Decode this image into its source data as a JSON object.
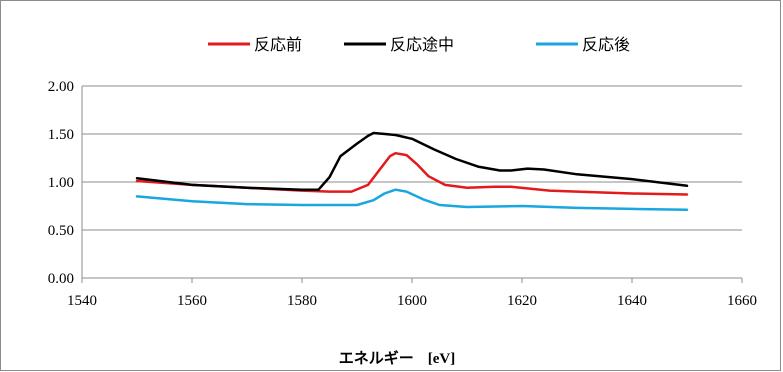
{
  "chart_data": {
    "type": "line",
    "title": "",
    "xlabel": "エネルギー",
    "xlabel_unit": "[eV]",
    "ylabel": "",
    "xlim": [
      1540,
      1660
    ],
    "ylim": [
      0,
      2
    ],
    "x_ticks": [
      "1540",
      "1560",
      "1580",
      "1600",
      "1620",
      "1640",
      "1660"
    ],
    "y_ticks": [
      "0.00",
      "0.50",
      "1.00",
      "1.50",
      "2.00"
    ],
    "grid": "horizontal",
    "legend_position": "top",
    "series": [
      {
        "name": "反応前",
        "color": "#e31a1c",
        "points": [
          [
            1550,
            1.01
          ],
          [
            1560,
            0.97
          ],
          [
            1570,
            0.94
          ],
          [
            1580,
            0.91
          ],
          [
            1585,
            0.9
          ],
          [
            1589,
            0.9
          ],
          [
            1592,
            0.97
          ],
          [
            1594,
            1.12
          ],
          [
            1596,
            1.27
          ],
          [
            1597,
            1.3
          ],
          [
            1599,
            1.28
          ],
          [
            1601,
            1.18
          ],
          [
            1603,
            1.06
          ],
          [
            1606,
            0.97
          ],
          [
            1610,
            0.94
          ],
          [
            1615,
            0.95
          ],
          [
            1618,
            0.95
          ],
          [
            1625,
            0.91
          ],
          [
            1630,
            0.9
          ],
          [
            1640,
            0.88
          ],
          [
            1650,
            0.87
          ]
        ]
      },
      {
        "name": "反応途中",
        "color": "#000000",
        "points": [
          [
            1550,
            1.04
          ],
          [
            1560,
            0.97
          ],
          [
            1570,
            0.94
          ],
          [
            1580,
            0.92
          ],
          [
            1583,
            0.92
          ],
          [
            1585,
            1.05
          ],
          [
            1587,
            1.27
          ],
          [
            1590,
            1.4
          ],
          [
            1592,
            1.48
          ],
          [
            1593,
            1.51
          ],
          [
            1597,
            1.49
          ],
          [
            1600,
            1.45
          ],
          [
            1604,
            1.34
          ],
          [
            1608,
            1.24
          ],
          [
            1612,
            1.16
          ],
          [
            1616,
            1.12
          ],
          [
            1618,
            1.12
          ],
          [
            1621,
            1.14
          ],
          [
            1624,
            1.13
          ],
          [
            1630,
            1.08
          ],
          [
            1640,
            1.03
          ],
          [
            1650,
            0.96
          ]
        ]
      },
      {
        "name": "反応後",
        "color": "#1aa6df",
        "points": [
          [
            1550,
            0.85
          ],
          [
            1560,
            0.8
          ],
          [
            1570,
            0.77
          ],
          [
            1580,
            0.76
          ],
          [
            1590,
            0.76
          ],
          [
            1593,
            0.81
          ],
          [
            1595,
            0.88
          ],
          [
            1597,
            0.92
          ],
          [
            1599,
            0.9
          ],
          [
            1602,
            0.82
          ],
          [
            1605,
            0.76
          ],
          [
            1610,
            0.74
          ],
          [
            1620,
            0.75
          ],
          [
            1630,
            0.73
          ],
          [
            1640,
            0.72
          ],
          [
            1650,
            0.71
          ]
        ]
      }
    ]
  }
}
